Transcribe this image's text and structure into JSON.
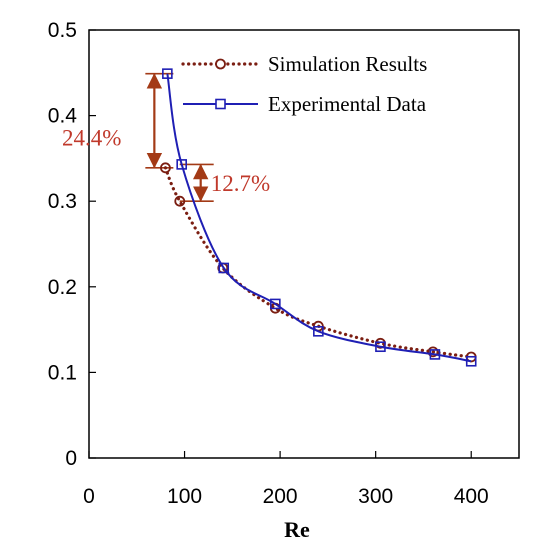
{
  "chart_data": {
    "type": "line",
    "xlabel": "Re",
    "ylabel": "",
    "xlim": [
      0,
      450
    ],
    "ylim": [
      0,
      0.5
    ],
    "x_ticks": [
      "0",
      "100",
      "200",
      "300",
      "400"
    ],
    "y_ticks": [
      "0",
      "0.1",
      "0.2",
      "0.3",
      "0.4",
      "0.5"
    ],
    "grid": false,
    "legend_position": "top-right",
    "series": [
      {
        "name": "Simulation Results",
        "color": "#7b1e12",
        "line_style": "dotted",
        "marker": "circle",
        "x": [
          80,
          95,
          140,
          195,
          240,
          305,
          360,
          400
        ],
        "y": [
          0.339,
          0.3,
          0.222,
          0.175,
          0.154,
          0.134,
          0.124,
          0.118
        ]
      },
      {
        "name": "Experimental Data",
        "color": "#1f1fb4",
        "line_style": "solid",
        "marker": "square",
        "x": [
          82,
          97,
          141,
          195,
          240,
          305,
          362,
          400
        ],
        "y": [
          0.449,
          0.343,
          0.222,
          0.18,
          0.148,
          0.13,
          0.121,
          0.113
        ]
      }
    ],
    "annotations": [
      {
        "text": "24.4%",
        "x": 82,
        "y_from": 0.339,
        "y_to": 0.449,
        "color": "#c0392b"
      },
      {
        "text": "12.7%",
        "x": 97,
        "y_from": 0.3,
        "y_to": 0.343,
        "color": "#c0392b"
      }
    ]
  }
}
